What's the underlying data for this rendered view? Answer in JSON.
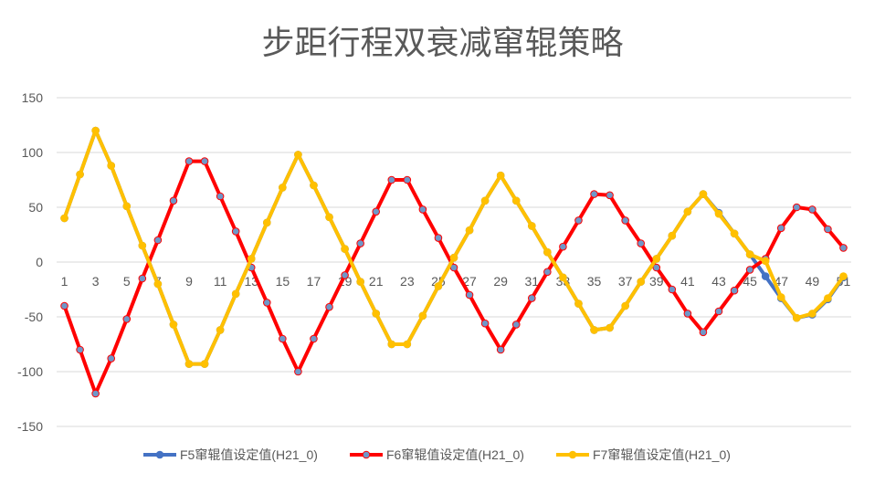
{
  "chart_data": {
    "type": "line",
    "title": "步距行程双衰减窜辊策略",
    "xlabel": "",
    "ylabel": "",
    "ylim": [
      -150,
      150
    ],
    "yticks": [
      -150,
      -100,
      -50,
      0,
      50,
      100,
      150
    ],
    "grid": true,
    "legend_position": "bottom",
    "categories": [
      1,
      2,
      3,
      4,
      5,
      6,
      7,
      8,
      9,
      10,
      11,
      12,
      13,
      14,
      15,
      16,
      17,
      18,
      19,
      20,
      21,
      22,
      23,
      24,
      25,
      26,
      27,
      28,
      29,
      30,
      31,
      32,
      33,
      34,
      35,
      36,
      37,
      38,
      39,
      40,
      41,
      42,
      43,
      44,
      45,
      46,
      47,
      48,
      49,
      50,
      51
    ],
    "xtick_labels": [
      "1",
      "3",
      "5",
      "7",
      "9",
      "11",
      "13",
      "15",
      "17",
      "19",
      "21",
      "23",
      "25",
      "27",
      "29",
      "31",
      "33",
      "35",
      "37",
      "39",
      "41",
      "43",
      "45",
      "47",
      "49",
      "51"
    ],
    "series": [
      {
        "name": "F5窜辊值设定值(H21_0)",
        "color": "#4472c4",
        "marker_fill": "#4472c4",
        "values": [
          40,
          80,
          120,
          88,
          51,
          15,
          -20,
          -57,
          -93,
          -93,
          -62,
          -29,
          3,
          36,
          68,
          98,
          70,
          41,
          12,
          -18,
          -47,
          -75,
          -75,
          -49,
          -22,
          4,
          29,
          56,
          79,
          56,
          33,
          9,
          -14,
          -38,
          -62,
          -60,
          -40,
          -18,
          3,
          24,
          46,
          62,
          45,
          26,
          7,
          -13,
          -33,
          -51,
          -48,
          -34,
          -14
        ]
      },
      {
        "name": "F6窜辊值设定值(H21_0)",
        "color": "#ff0000",
        "marker_fill": "#6f97c8",
        "values": [
          -40,
          -80,
          -120,
          -88,
          -52,
          -15,
          20,
          56,
          92,
          92,
          60,
          28,
          -5,
          -37,
          -70,
          -100,
          -70,
          -41,
          -12,
          17,
          46,
          75,
          75,
          48,
          22,
          -5,
          -30,
          -56,
          -80,
          -57,
          -33,
          -9,
          14,
          38,
          62,
          61,
          38,
          17,
          -5,
          -25,
          -47,
          -64,
          -45,
          -26,
          -7,
          3,
          31,
          50,
          48,
          30,
          13
        ]
      },
      {
        "name": "F7窜辊值设定值(H21_0)",
        "color": "#ffc000",
        "marker_fill": "#ffc000",
        "values": [
          40,
          80,
          120,
          88,
          51,
          15,
          -20,
          -57,
          -93,
          -93,
          -62,
          -29,
          3,
          36,
          68,
          98,
          70,
          41,
          12,
          -18,
          -47,
          -75,
          -75,
          -49,
          -22,
          4,
          29,
          56,
          79,
          56,
          33,
          9,
          -14,
          -38,
          -62,
          -60,
          -40,
          -18,
          3,
          24,
          46,
          62,
          44,
          26,
          7,
          1,
          -32,
          -51,
          -47,
          -33,
          -13
        ]
      }
    ]
  }
}
